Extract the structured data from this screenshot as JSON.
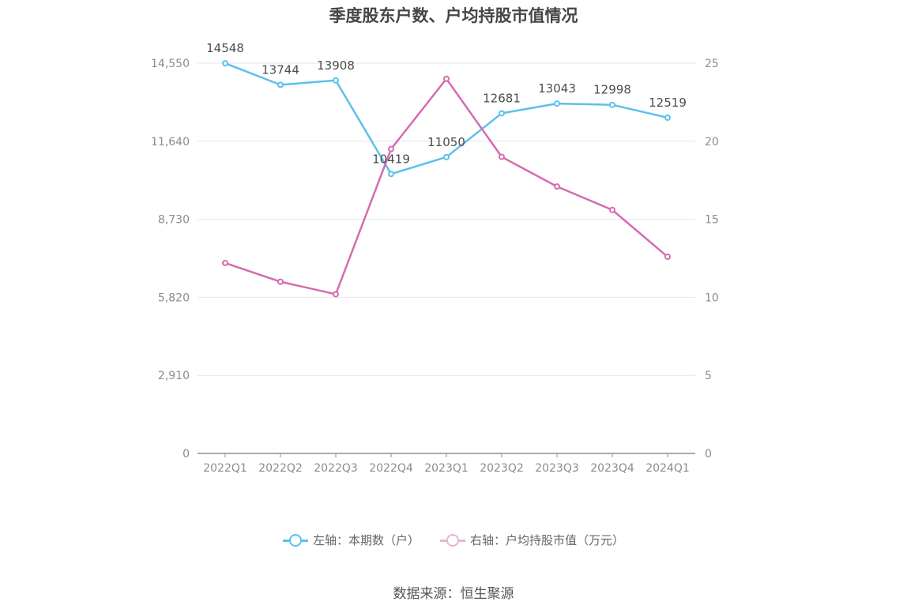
{
  "title": "季度股东户数、户均持股市值情况",
  "source": "数据来源：恒生聚源",
  "colors": {
    "left": "#5bc0eb",
    "right": "#d66bb0",
    "grid": "#e3e6ef",
    "axis": "#8a8fa3"
  },
  "legend": {
    "left_label": "左轴：本期数（户）",
    "right_label": "右轴：户均持股市值（万元）"
  },
  "chart_data": {
    "type": "line",
    "categories": [
      "2022Q1",
      "2022Q2",
      "2022Q3",
      "2022Q4",
      "2023Q1",
      "2023Q2",
      "2023Q3",
      "2023Q4",
      "2024Q1"
    ],
    "left_axis": {
      "ticks": [
        0,
        2910,
        5820,
        8730,
        11640,
        14550
      ],
      "tick_labels": [
        "0",
        "2,910",
        "5,820",
        "8,730",
        "11,640",
        "14,550"
      ],
      "range": [
        0,
        14550
      ]
    },
    "right_axis": {
      "ticks": [
        0,
        5,
        10,
        15,
        20,
        25
      ],
      "tick_labels": [
        "0",
        "5",
        "10",
        "15",
        "20",
        "25"
      ],
      "range": [
        0,
        25
      ]
    },
    "grid": true,
    "legend_position": "bottom",
    "series": [
      {
        "name": "左轴：本期数（户）",
        "axis": "left",
        "values": [
          14548,
          13744,
          13908,
          10419,
          11050,
          12681,
          13043,
          12998,
          12519
        ],
        "labels": [
          "14548",
          "13744",
          "13908",
          "10419",
          "11050",
          "12681",
          "13043",
          "12998",
          "12519"
        ]
      },
      {
        "name": "右轴：户均持股市值（万元）",
        "axis": "right",
        "values": [
          12.2,
          11.0,
          10.2,
          19.5,
          24.0,
          19.0,
          17.1,
          15.6,
          12.6
        ]
      }
    ]
  }
}
